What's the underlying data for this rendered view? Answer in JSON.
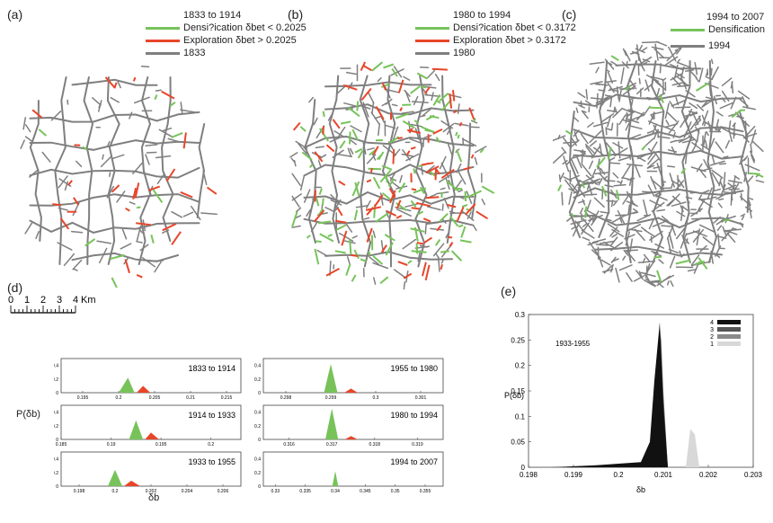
{
  "panel_labels": {
    "a": "(a)",
    "b": "(b)",
    "c": "(c)",
    "d": "(d)",
    "e": "(e)"
  },
  "colors": {
    "green": "#77c35a",
    "red": "#e8452a",
    "gray": "#7f7f7f"
  },
  "map_a": {
    "legend_title": "1833 to 1914",
    "items": [
      {
        "label": "Densi?ication  δbet < 0.2025",
        "color": "#77c35a"
      },
      {
        "label": "Exploration   δbet > 0.2025",
        "color": "#e8452a"
      },
      {
        "label": "1833",
        "color": "#7f7f7f"
      }
    ]
  },
  "map_b": {
    "legend_title": "1980 to 1994",
    "items": [
      {
        "label": "Densi?ication δbet < 0.3172",
        "color": "#77c35a"
      },
      {
        "label": "Exploration  δbet > 0.3172",
        "color": "#e8452a"
      },
      {
        "label": "1980",
        "color": "#7f7f7f"
      }
    ]
  },
  "map_c": {
    "legend_title": "1994 to 2007",
    "items": [
      {
        "label": "Densification",
        "color": "#77c35a"
      },
      {
        "label": "1994",
        "color": "#7f7f7f"
      }
    ]
  },
  "scalebar": {
    "unit": "Km",
    "ticks": [
      "0",
      "1",
      "2",
      "3",
      "4"
    ]
  },
  "chart_data": [
    {
      "type": "area",
      "title": "1833 to 1914",
      "xticks": [
        "0.195",
        "0.2",
        "0.205",
        "0.21",
        "0.215"
      ],
      "xlim": [
        0.192,
        0.217
      ],
      "yticks": [
        "0",
        "0.2",
        "0.4"
      ],
      "ylim": [
        0,
        0.5
      ],
      "series": [
        {
          "color": "#77c35a",
          "x": [
            0.2,
            0.2013,
            0.2022
          ],
          "y": [
            0,
            0.22,
            0
          ]
        },
        {
          "color": "#e8452a",
          "x": [
            0.2025,
            0.2034,
            0.2044
          ],
          "y": [
            0,
            0.1,
            0
          ]
        }
      ]
    },
    {
      "type": "area",
      "title": "1955 to 1980",
      "xticks": [
        "0.298",
        "0.299",
        "0.3",
        "0.301"
      ],
      "xlim": [
        0.2975,
        0.3015
      ],
      "yticks": [
        "0",
        "0.2",
        "0.4"
      ],
      "ylim": [
        0,
        0.5
      ],
      "series": [
        {
          "color": "#77c35a",
          "x": [
            0.29885,
            0.299,
            0.29915
          ],
          "y": [
            0,
            0.42,
            0
          ]
        },
        {
          "color": "#e8452a",
          "x": [
            0.2993,
            0.29945,
            0.2996
          ],
          "y": [
            0,
            0.06,
            0
          ]
        }
      ]
    },
    {
      "type": "area",
      "title": "1914 to 1933",
      "xticks": [
        "0.185",
        "0.19",
        "0.195",
        "0.2"
      ],
      "xlim": [
        0.185,
        0.203
      ],
      "yticks": [
        "0",
        "0.2",
        "0.4"
      ],
      "ylim": [
        0,
        0.5
      ],
      "series": [
        {
          "color": "#77c35a",
          "x": [
            0.1918,
            0.1925,
            0.1932
          ],
          "y": [
            0,
            0.28,
            0
          ]
        },
        {
          "color": "#e8452a",
          "x": [
            0.1934,
            0.194,
            0.1948
          ],
          "y": [
            0,
            0.1,
            0
          ]
        }
      ]
    },
    {
      "type": "area",
      "title": "1980 to 1994",
      "xticks": [
        "0.316",
        "0.317",
        "0.318",
        "0.319"
      ],
      "xlim": [
        0.3154,
        0.3196
      ],
      "yticks": [
        "0",
        "0.2",
        "0.4"
      ],
      "ylim": [
        0,
        0.5
      ],
      "series": [
        {
          "color": "#77c35a",
          "x": [
            0.31685,
            0.317,
            0.31715
          ],
          "y": [
            0,
            0.45,
            0
          ]
        },
        {
          "color": "#e8452a",
          "x": [
            0.3173,
            0.31745,
            0.3176
          ],
          "y": [
            0,
            0.05,
            0
          ]
        }
      ]
    },
    {
      "type": "area",
      "title": "1933 to 1955",
      "xticks": [
        "0.198",
        "0.2",
        "0.202",
        "0.204",
        "0.206"
      ],
      "xlim": [
        0.197,
        0.207
      ],
      "yticks": [
        "0",
        "0.2",
        "0.4"
      ],
      "ylim": [
        0,
        0.5
      ],
      "series": [
        {
          "color": "#77c35a",
          "x": [
            0.1996,
            0.2,
            0.2004
          ],
          "y": [
            0,
            0.24,
            0
          ]
        },
        {
          "color": "#e8452a",
          "x": [
            0.2005,
            0.2009,
            0.2014
          ],
          "y": [
            0,
            0.08,
            0
          ]
        }
      ]
    },
    {
      "type": "area",
      "title": "1994 to 2007",
      "xticks": [
        "0.33",
        "0.335",
        "0.34",
        "0.345",
        "0.35",
        "0.355"
      ],
      "xlim": [
        0.328,
        0.358
      ],
      "yticks": [
        "0",
        "0.2",
        "0.4"
      ],
      "ylim": [
        0,
        0.5
      ],
      "series": [
        {
          "color": "#77c35a",
          "x": [
            0.3395,
            0.34,
            0.3405
          ],
          "y": [
            0,
            0.22,
            0
          ]
        }
      ]
    },
    {
      "type": "area",
      "title": "1933-1955",
      "xlabel": "δb",
      "ylabel": "P(δb)",
      "xlim": [
        0.198,
        0.203
      ],
      "ylim": [
        0,
        0.3
      ],
      "xticks": [
        "0.198",
        "0.199",
        "0.2",
        "0.201",
        "0.202",
        "0.203"
      ],
      "yticks": [
        "0",
        "0.05",
        "0.1",
        "0.15",
        "0.2",
        "0.25",
        "0.3"
      ],
      "legend_position": "top-right",
      "series": [
        {
          "name": "1",
          "color": "#d8d8d8",
          "x": [
            0.2015,
            0.2016,
            0.2017,
            0.2018
          ],
          "y": [
            0,
            0.075,
            0.065,
            0
          ]
        },
        {
          "name": "2",
          "color": "#8a8a8a",
          "x": [
            0.2005,
            0.2007,
            0.2008,
            0.20095,
            0.201,
            0.2011
          ],
          "y": [
            0,
            0.02,
            0.1,
            0.26,
            0.15,
            0
          ]
        },
        {
          "name": "3",
          "color": "#555555",
          "x": [
            0.1988,
            0.1995,
            0.2005,
            0.2007,
            0.2008,
            0.20093,
            0.201,
            0.2011
          ],
          "y": [
            0,
            0.003,
            0.008,
            0.04,
            0.15,
            0.27,
            0.14,
            0
          ]
        },
        {
          "name": "4",
          "color": "#111111",
          "x": [
            0.1985,
            0.1995,
            0.2005,
            0.2007,
            0.2008,
            0.20092,
            0.201,
            0.2011
          ],
          "y": [
            0,
            0.004,
            0.01,
            0.05,
            0.17,
            0.285,
            0.12,
            0
          ]
        }
      ]
    },
    {
      "type": "area",
      "ylabel": "P(δb)",
      "xlabel": "δb"
    }
  ]
}
